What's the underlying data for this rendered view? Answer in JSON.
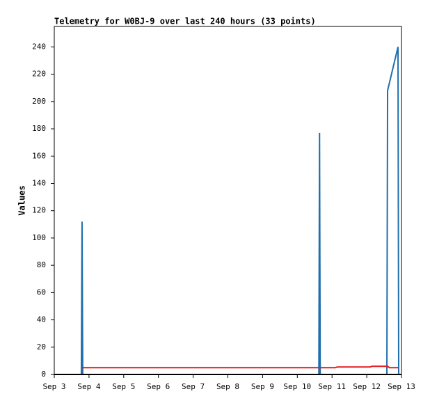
{
  "chart_data": {
    "type": "line",
    "title": "Telemetry for W0BJ-9 over last 240 hours (33 points)",
    "y_label": "Values",
    "xlim": [
      3,
      13
    ],
    "xticks": [
      {
        "value": 3,
        "label": "Sep 3"
      },
      {
        "value": 4,
        "label": "Sep 4"
      },
      {
        "value": 5,
        "label": "Sep 5"
      },
      {
        "value": 6,
        "label": "Sep 6"
      },
      {
        "value": 7,
        "label": "Sep 7"
      },
      {
        "value": 8,
        "label": "Sep 8"
      },
      {
        "value": 9,
        "label": "Sep 9"
      },
      {
        "value": 10,
        "label": "Sep 10"
      },
      {
        "value": 11,
        "label": "Sep 11"
      },
      {
        "value": 12,
        "label": "Sep 12"
      },
      {
        "value": 13,
        "label": "Sep 13"
      }
    ],
    "ylim": [
      0,
      255
    ],
    "yticks": [
      0,
      20,
      40,
      60,
      80,
      100,
      120,
      140,
      160,
      180,
      200,
      220,
      240
    ],
    "grid": false,
    "series": [
      {
        "color": "#1f6fad",
        "x": [
          3.78,
          3.8,
          3.82,
          10.62,
          10.64,
          10.66,
          12.58,
          12.6,
          12.9,
          12.92
        ],
        "values": [
          0,
          112,
          0,
          0,
          177,
          0,
          0,
          208,
          240,
          0
        ]
      },
      {
        "color": "#e41a1c",
        "x": [
          3.78,
          5,
          7,
          9,
          10.6,
          11.1,
          11.15,
          12.1,
          12.15,
          12.6,
          12.65,
          12.92
        ],
        "values": [
          5,
          5,
          5,
          5,
          5,
          5,
          5.5,
          5.5,
          6,
          6,
          5,
          5
        ]
      }
    ]
  }
}
